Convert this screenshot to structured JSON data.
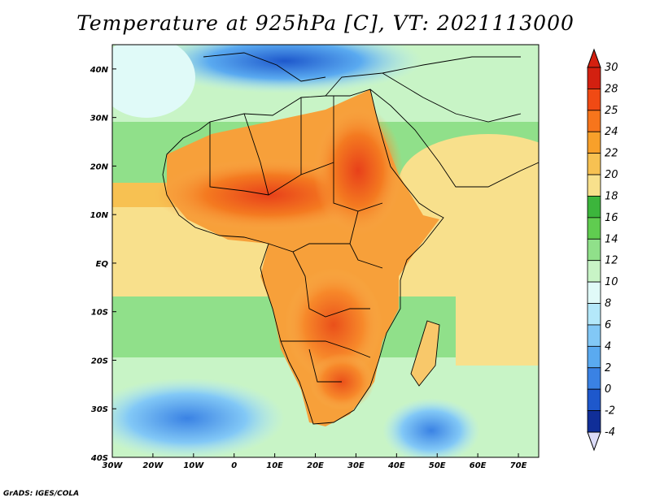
{
  "title": "Temperature at 925hPa [C], VT: 2021113000",
  "credit": "GrADS: IGES/COLA",
  "map": {
    "lon_range": [
      -30,
      75
    ],
    "lat_range": [
      -40,
      45
    ],
    "lon_ticks": [
      {
        "value": -30,
        "label": "30W"
      },
      {
        "value": -20,
        "label": "20W"
      },
      {
        "value": -10,
        "label": "10W"
      },
      {
        "value": 0,
        "label": "0"
      },
      {
        "value": 10,
        "label": "10E"
      },
      {
        "value": 20,
        "label": "20E"
      },
      {
        "value": 30,
        "label": "30E"
      },
      {
        "value": 40,
        "label": "40E"
      },
      {
        "value": 50,
        "label": "50E"
      },
      {
        "value": 60,
        "label": "60E"
      },
      {
        "value": 70,
        "label": "70E"
      }
    ],
    "lat_ticks": [
      {
        "value": 40,
        "label": "40N"
      },
      {
        "value": 30,
        "label": "30N"
      },
      {
        "value": 20,
        "label": "20N"
      },
      {
        "value": 10,
        "label": "10N"
      },
      {
        "value": 0,
        "label": "EQ"
      },
      {
        "value": -10,
        "label": "10S"
      },
      {
        "value": -20,
        "label": "20S"
      },
      {
        "value": -30,
        "label": "30S"
      },
      {
        "value": -40,
        "label": "40S"
      }
    ]
  },
  "colorbar": {
    "labels": [
      "30",
      "28",
      "25",
      "24",
      "22",
      "20",
      "18",
      "16",
      "14",
      "12",
      "10",
      "8",
      "6",
      "4",
      "2",
      "0",
      "-2",
      "-4"
    ],
    "colors": [
      "#d32010",
      "#f04a14",
      "#f7751c",
      "#f8a02a",
      "#f7c152",
      "#f8e08c",
      "#3cb53c",
      "#60cc50",
      "#90e08a",
      "#c8f4c6",
      "#e0faf8",
      "#b4e8fa",
      "#82c8f6",
      "#5aaaf0",
      "#3a82e4",
      "#1e58cc",
      "#102e98"
    ],
    "top_color": "#d32010",
    "bottom_color": "#dcdcf8"
  }
}
